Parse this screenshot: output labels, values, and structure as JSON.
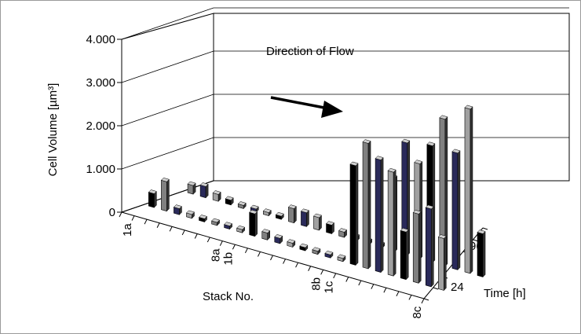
{
  "chart_data": {
    "type": "bar",
    "subtype": "3d-column",
    "annotation": "Direction of Flow",
    "ylabel": "Cell Volume [µm³]",
    "xlabel": "Stack No.",
    "zlabel": "Time [h]",
    "ylim": [
      0,
      4000
    ],
    "yticks": [
      "0",
      "1.000",
      "2.000",
      "3.000",
      "4.000"
    ],
    "ytick_values": [
      0,
      1000,
      2000,
      3000,
      4000
    ],
    "x_tick_labels": [
      "1a",
      "8a",
      "1b",
      "8b",
      "1c",
      "8c"
    ],
    "z_tick_labels": [
      "24",
      "96"
    ],
    "grid": true,
    "series_colors": [
      "#000000",
      "#808080",
      "#2a2a5a",
      "#a0a0a0"
    ],
    "regions": [
      {
        "name": "a",
        "values": [
          [
            320,
            680,
            140,
            90,
            70,
            60,
            40,
            30
          ],
          [
            200,
            260,
            160,
            110,
            60,
            50,
            40,
            30
          ]
        ]
      },
      {
        "name": "b",
        "values": [
          [
            520,
            160,
            120,
            90,
            70,
            60,
            50,
            40
          ],
          [
            330,
            320,
            290,
            200,
            120,
            90,
            60,
            40
          ]
        ]
      },
      {
        "name": "c",
        "values": [
          [
            2300,
            2900,
            2600,
            2400,
            1100,
            1600,
            1800,
            1200
          ],
          [
            1700,
            2600,
            2200,
            2700,
            3400,
            2700,
            3800,
            1000
          ]
        ]
      }
    ]
  }
}
